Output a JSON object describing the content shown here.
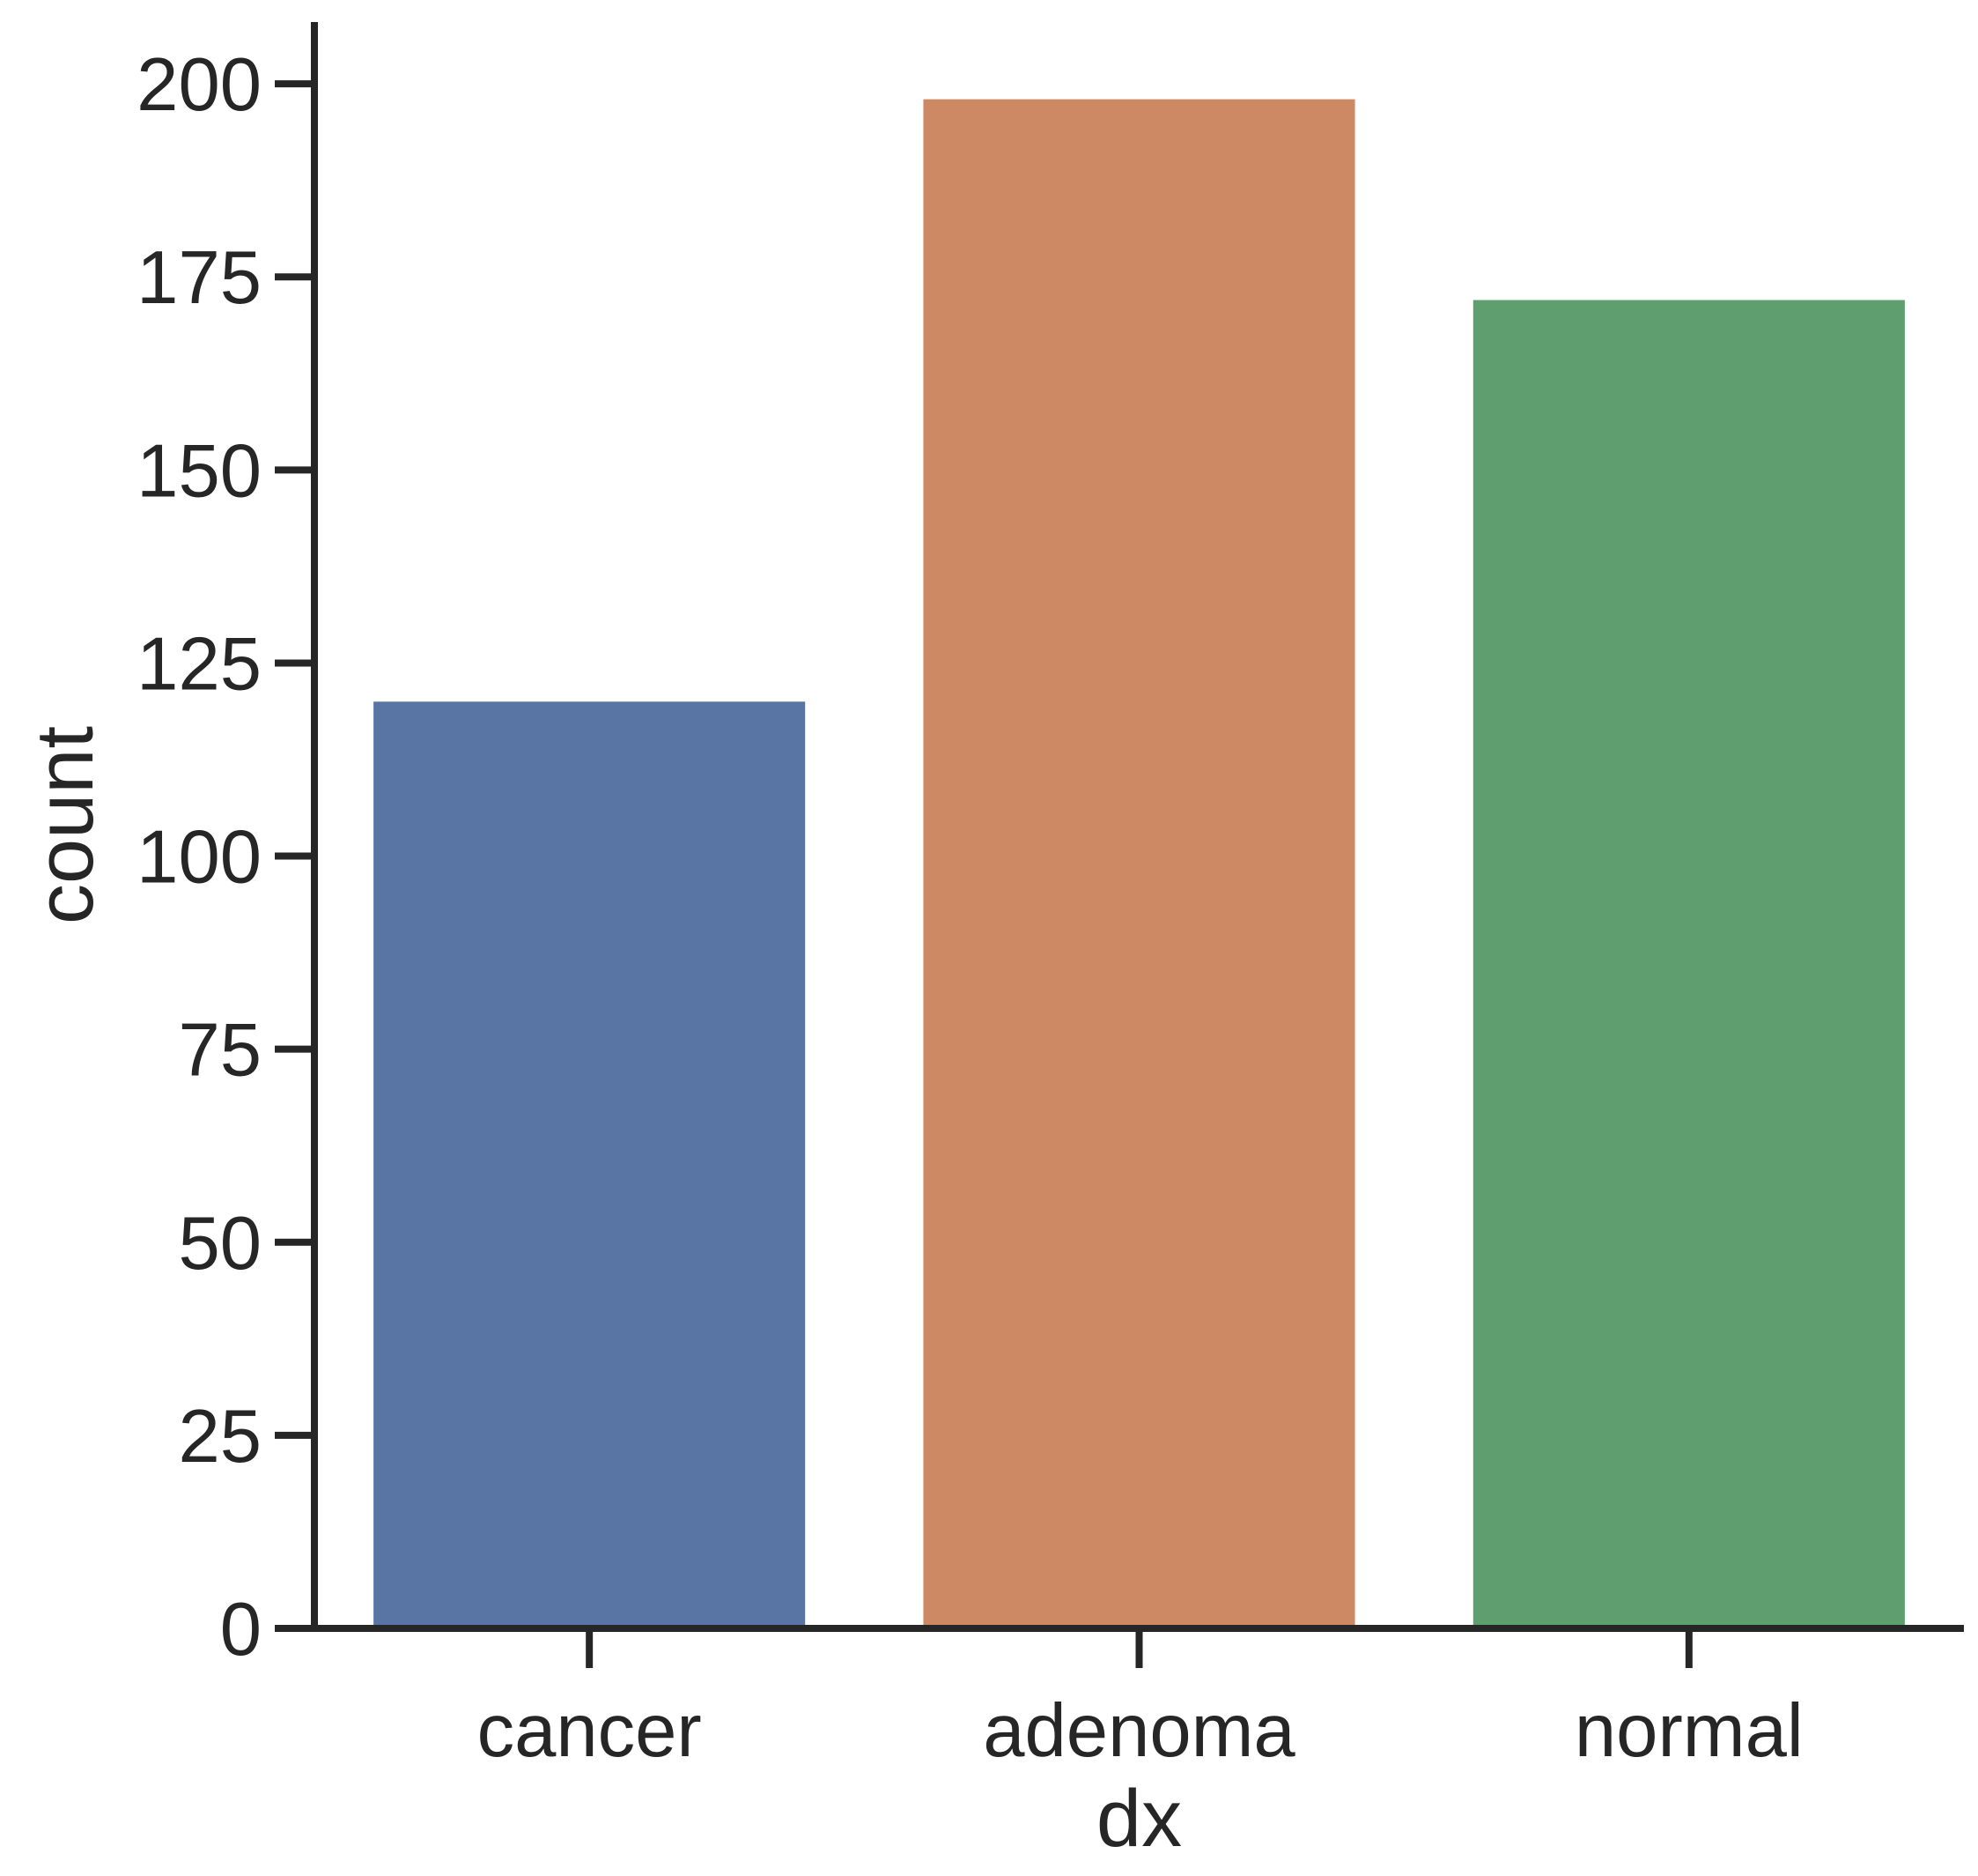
{
  "chart_data": {
    "type": "bar",
    "categories": [
      "cancer",
      "adenoma",
      "normal"
    ],
    "values": [
      120,
      198,
      172
    ],
    "colors": [
      "#5975a4",
      "#cc8963",
      "#5f9e6e"
    ],
    "xlabel": "dx",
    "ylabel": "count",
    "ylim": [
      0,
      208
    ],
    "yticks": [
      0,
      25,
      50,
      75,
      100,
      125,
      150,
      175,
      200
    ],
    "grid": false
  }
}
